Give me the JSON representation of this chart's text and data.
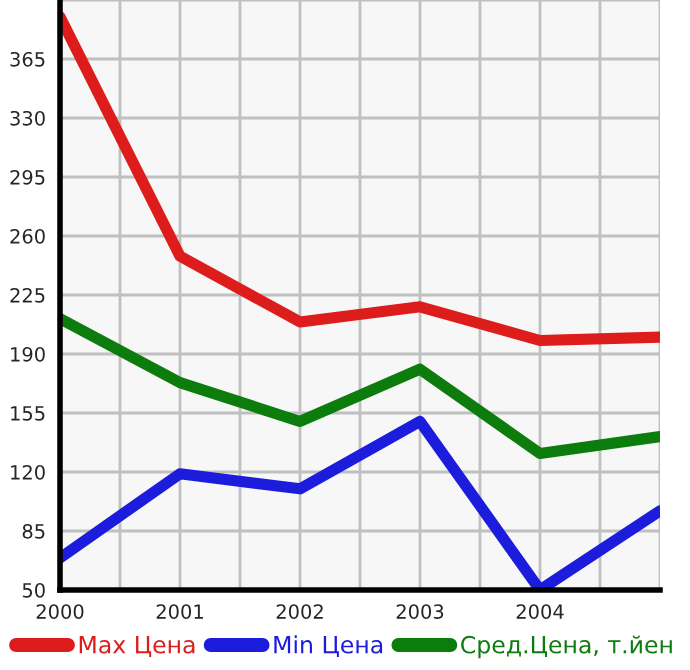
{
  "chart_data": {
    "type": "line",
    "x": [
      2000,
      2001,
      2002,
      2003,
      2004,
      2005
    ],
    "series": [
      {
        "name": "Max Цена",
        "color": "#dd1c1c",
        "values": [
          390,
          248,
          209,
          218,
          198,
          200
        ]
      },
      {
        "name": "Min Цена",
        "color": "#1c1cdd",
        "values": [
          69,
          119,
          110,
          150,
          50,
          97
        ]
      },
      {
        "name": "Сред.Цена, т.йен",
        "color": "#0c7c0c",
        "values": [
          211,
          173,
          150,
          181,
          131,
          141
        ]
      }
    ],
    "xlim": [
      2000,
      2005
    ],
    "xticks": [
      2000,
      {
        "value": 2000.5,
        "label": null
      },
      2001,
      {
        "value": 2001.5,
        "label": null
      },
      2002,
      {
        "value": 2002.5,
        "label": null
      },
      2003,
      {
        "value": 2003.5,
        "label": null
      },
      2004,
      {
        "value": 2004.5,
        "label": null
      },
      {
        "value": 2005,
        "label": null
      }
    ],
    "ylim": [
      50,
      400
    ],
    "yticks": [
      50,
      85,
      120,
      155,
      190,
      225,
      260,
      295,
      330,
      365,
      {
        "value": 400,
        "label": null
      }
    ],
    "grid": true,
    "legend": "bottom",
    "marker": "none",
    "line_style": "solid"
  }
}
